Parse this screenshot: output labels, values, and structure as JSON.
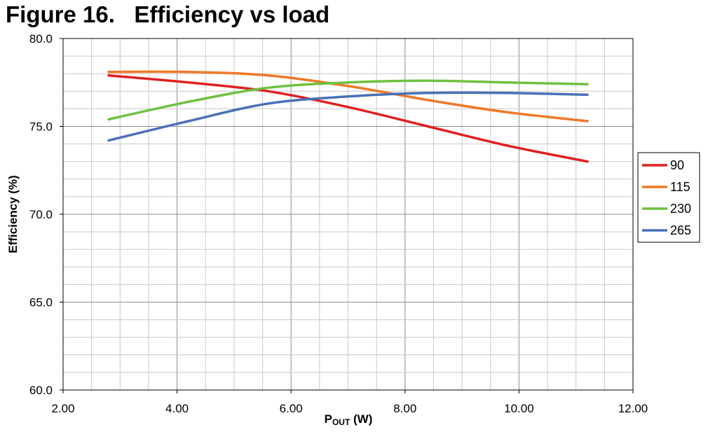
{
  "figure": {
    "number": "Figure 16.",
    "title": "Efficiency vs load"
  },
  "chart_data": {
    "type": "line",
    "title": "Efficiency vs load",
    "xlabel_main": "P",
    "xlabel_sub": "OUT",
    "xlabel_unit": " (W)",
    "ylabel": "Efficiency (%)",
    "xlim": [
      2.0,
      12.0
    ],
    "ylim": [
      60.0,
      80.0
    ],
    "x_ticks": [
      "2.00",
      "4.00",
      "6.00",
      "8.00",
      "10.00",
      "12.00"
    ],
    "y_ticks": [
      "60.0",
      "65.0",
      "70.0",
      "75.0",
      "80.0"
    ],
    "grid": true,
    "legend_position": "right",
    "series": [
      {
        "name": "90",
        "color": "#e02020",
        "x": [
          2.8,
          4.2,
          5.6,
          7.0,
          8.4,
          9.8,
          11.2
        ],
        "values": [
          77.9,
          77.5,
          77.0,
          76.1,
          75.0,
          73.9,
          73.0
        ]
      },
      {
        "name": "115",
        "color": "#f07828",
        "x": [
          2.8,
          4.2,
          5.6,
          7.0,
          8.4,
          9.8,
          11.2
        ],
        "values": [
          78.1,
          78.1,
          77.9,
          77.3,
          76.5,
          75.8,
          75.3
        ]
      },
      {
        "name": "230",
        "color": "#70c040",
        "x": [
          2.8,
          4.2,
          5.6,
          7.0,
          8.4,
          9.8,
          11.2
        ],
        "values": [
          75.4,
          76.4,
          77.2,
          77.5,
          77.6,
          77.5,
          77.4
        ]
      },
      {
        "name": "265",
        "color": "#4a70b8",
        "x": [
          2.8,
          4.2,
          5.6,
          7.0,
          8.4,
          9.8,
          11.2
        ],
        "values": [
          74.2,
          75.3,
          76.3,
          76.7,
          76.9,
          76.9,
          76.8
        ]
      }
    ]
  }
}
